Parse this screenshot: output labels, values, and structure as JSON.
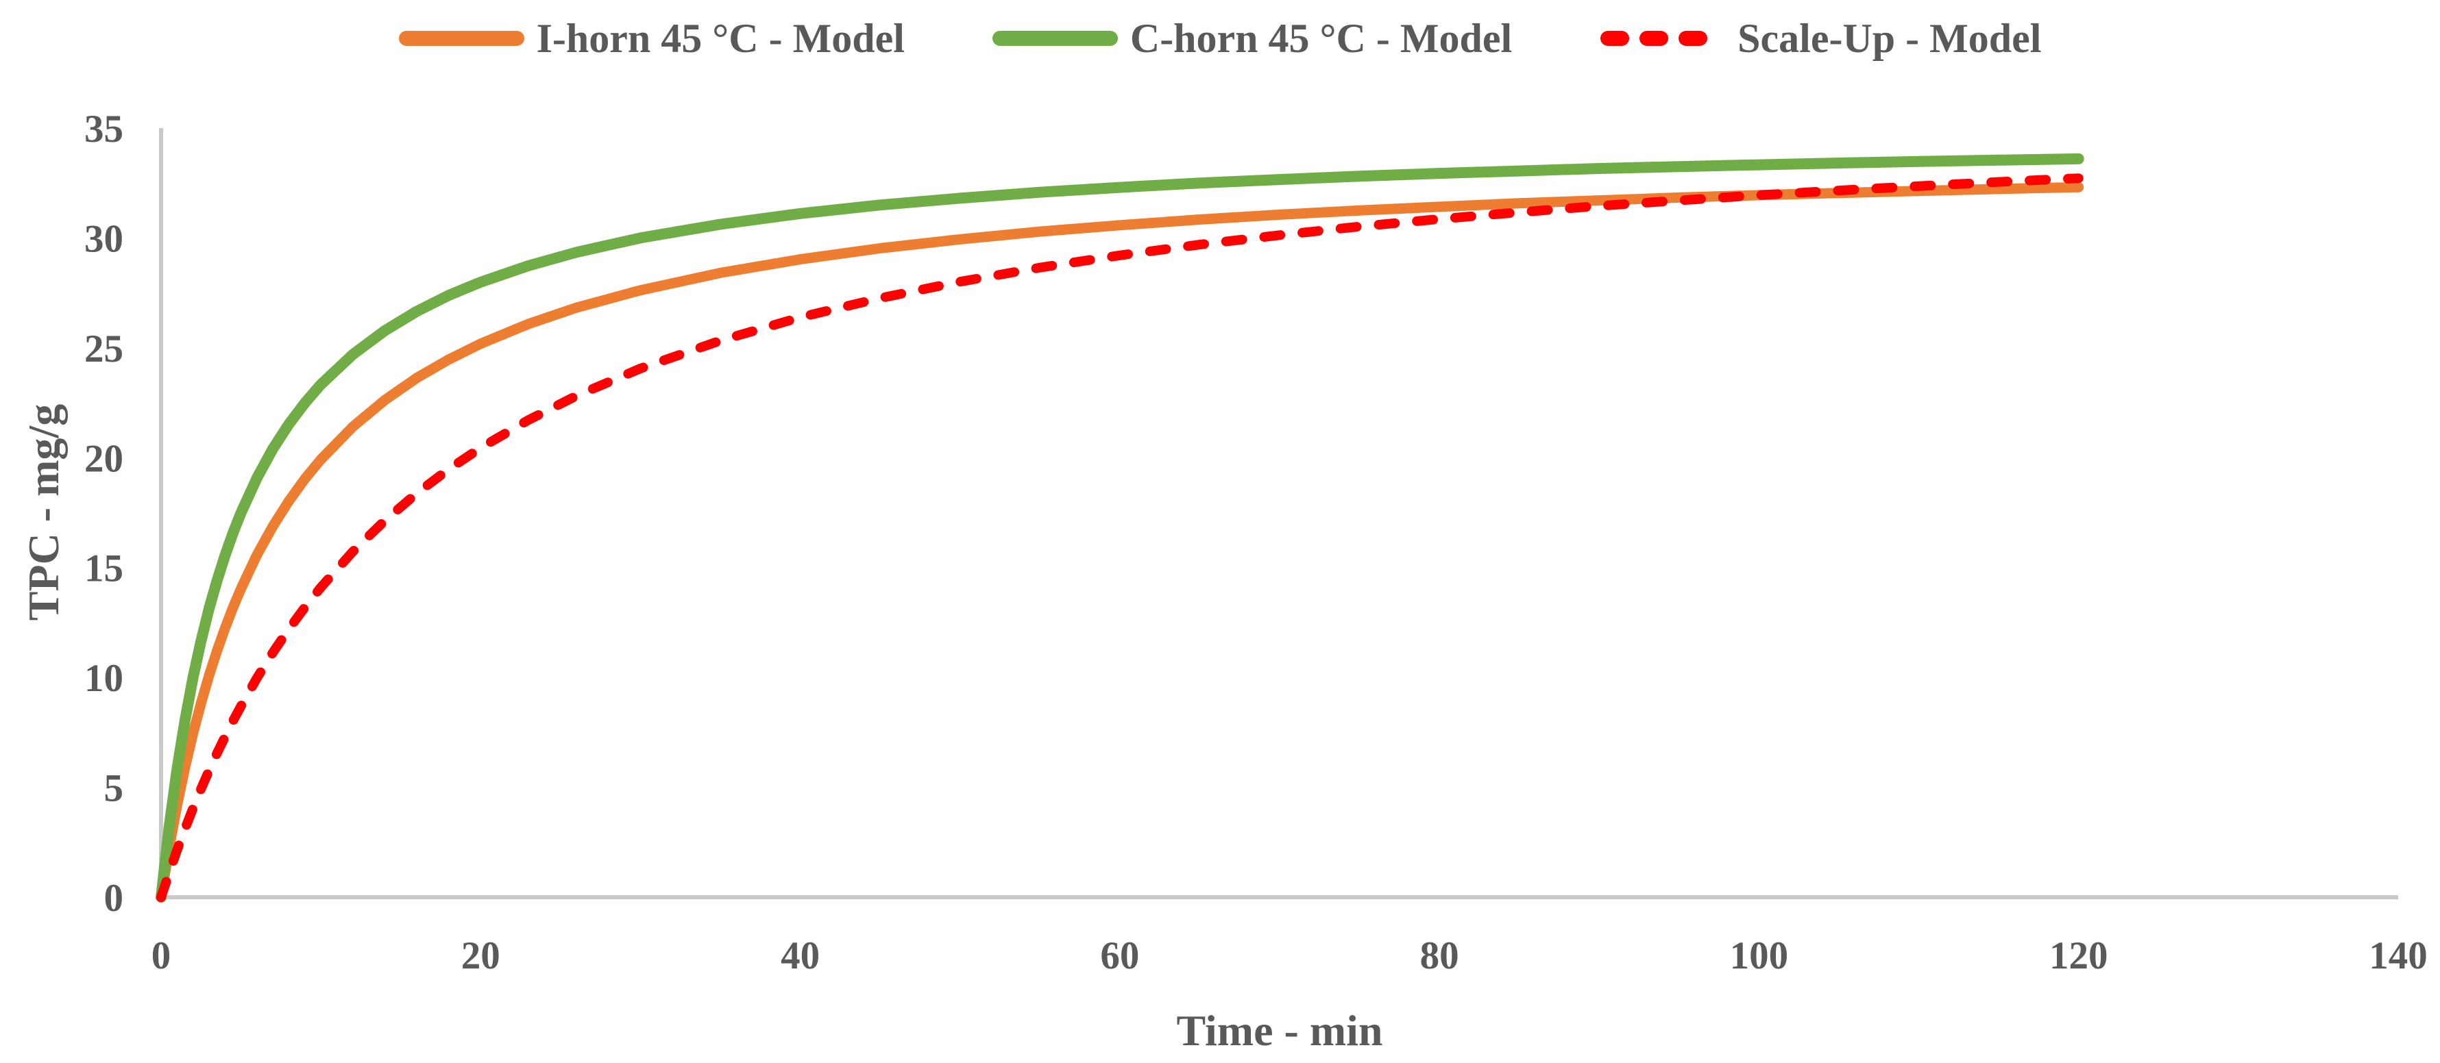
{
  "colors": {
    "axis_line": "#C9C9C9",
    "text": "#595959",
    "background": "#FFFFFF",
    "series_orange": "#ED7D31",
    "series_green": "#70AD47",
    "series_red": "#FF0000"
  },
  "legend": {
    "position": "top",
    "entries": [
      {
        "label": "I-horn 45 °C - Model",
        "color": "#ED7D31",
        "style": "solid"
      },
      {
        "label": "C-horn 45 °C - Model",
        "color": "#70AD47",
        "style": "solid"
      },
      {
        "label": "Scale-Up - Model",
        "color": "#FF0000",
        "style": "dashed"
      }
    ]
  },
  "chart_data": {
    "type": "line",
    "title": "",
    "xlabel": "Time - min",
    "ylabel": "TPC - mg/g",
    "xlim": [
      0,
      140
    ],
    "ylim": [
      0,
      35
    ],
    "x_ticks": [
      0,
      20,
      40,
      60,
      80,
      100,
      120,
      140
    ],
    "y_ticks": [
      0,
      5,
      10,
      15,
      20,
      25,
      30,
      35
    ],
    "grid": false,
    "legend_position": "top",
    "x": [
      0,
      0.5,
      1,
      1.5,
      2,
      2.5,
      3,
      3.5,
      4,
      4.5,
      5,
      6,
      7,
      8,
      9,
      10,
      12,
      14,
      16,
      18,
      20,
      23,
      26,
      30,
      35,
      40,
      45,
      50,
      55,
      60,
      65,
      70,
      75,
      80,
      85,
      90,
      95,
      100,
      105,
      110,
      115,
      120
    ],
    "series": [
      {
        "name": "I-horn 45 °C - Model",
        "color": "#ED7D31",
        "style": "solid",
        "width": 15,
        "values": [
          0,
          2.23,
          4.18,
          5.91,
          7.45,
          8.83,
          10.08,
          11.21,
          12.24,
          13.18,
          14.04,
          15.58,
          16.89,
          18.03,
          19.04,
          19.92,
          21.41,
          22.62,
          23.63,
          24.47,
          25.19,
          26.09,
          26.83,
          27.62,
          28.41,
          29.03,
          29.53,
          29.94,
          30.29,
          30.58,
          30.84,
          31.06,
          31.25,
          31.42,
          31.58,
          31.71,
          31.84,
          31.95,
          32.05,
          32.14,
          32.23,
          32.31
        ]
      },
      {
        "name": "C-horn 45 °C - Model",
        "color": "#70AD47",
        "style": "solid",
        "width": 16,
        "values": [
          0,
          3.18,
          5.83,
          8.07,
          10.0,
          11.66,
          13.12,
          14.4,
          15.55,
          16.57,
          17.49,
          19.08,
          20.41,
          21.53,
          22.49,
          23.33,
          24.7,
          25.78,
          26.66,
          27.39,
          27.99,
          28.74,
          29.35,
          30.0,
          30.62,
          31.11,
          31.5,
          31.81,
          32.08,
          32.3,
          32.5,
          32.66,
          32.81,
          32.94,
          33.05,
          33.16,
          33.25,
          33.33,
          33.41,
          33.48,
          33.54,
          33.6
        ]
      },
      {
        "name": "Scale-Up - Model",
        "color": "#FF0000",
        "style": "dashed",
        "width": 14,
        "values": [
          0,
          1.1,
          2.14,
          3.12,
          4.05,
          4.93,
          5.76,
          6.55,
          7.3,
          8.02,
          8.7,
          9.98,
          11.14,
          12.21,
          13.19,
          14.1,
          15.73,
          17.14,
          18.38,
          19.48,
          20.45,
          21.72,
          22.82,
          24.06,
          25.33,
          26.39,
          27.26,
          28.01,
          28.65,
          29.21,
          29.7,
          30.13,
          30.52,
          30.86,
          31.17,
          31.46,
          31.71,
          31.95,
          32.16,
          32.36,
          32.55,
          32.72
        ]
      }
    ]
  }
}
